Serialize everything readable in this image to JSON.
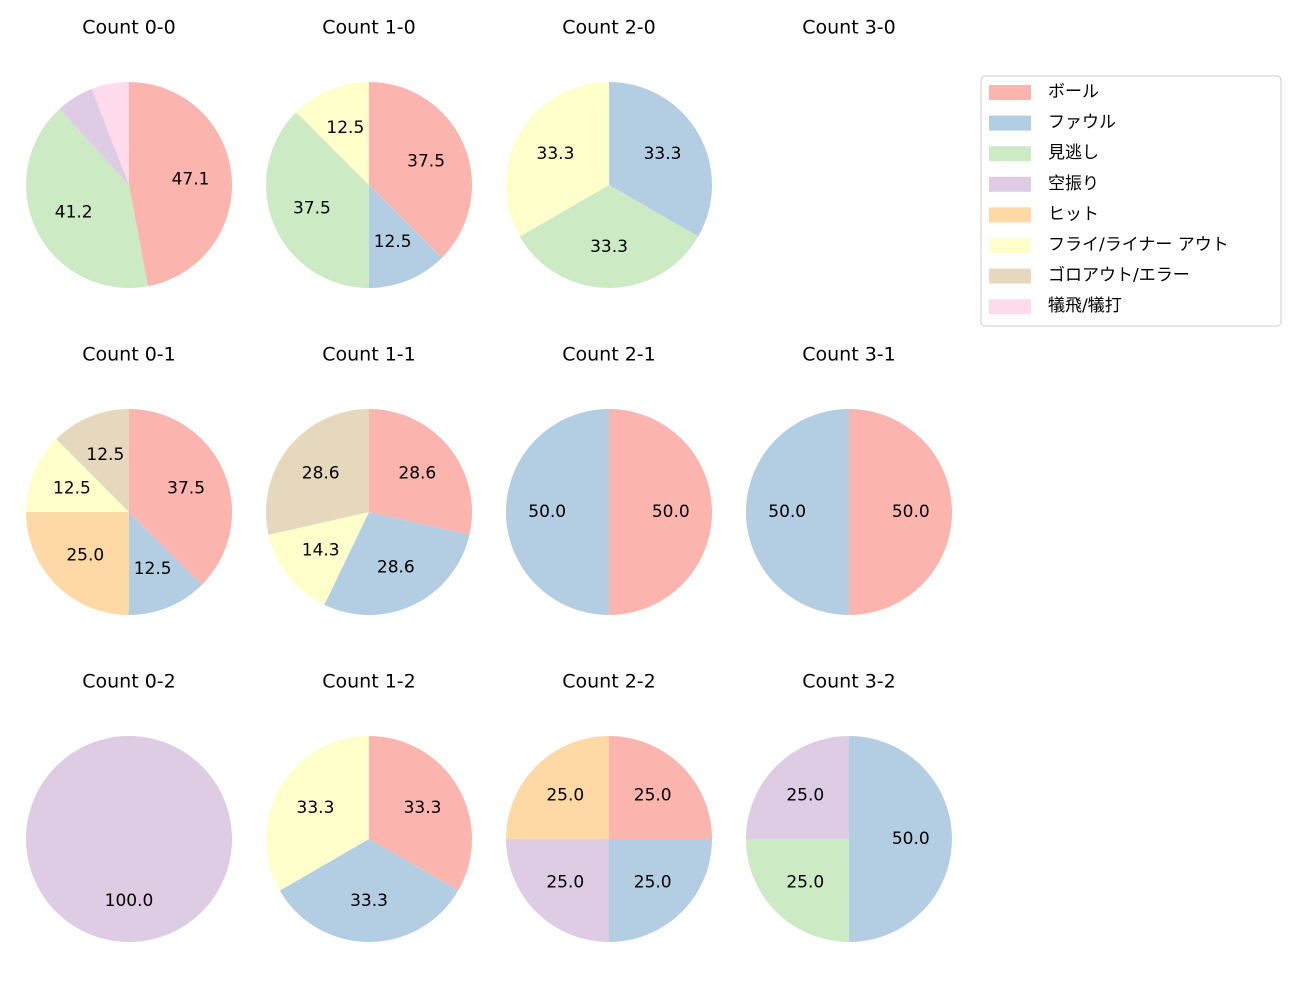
{
  "legend": {
    "categories": [
      "ボール",
      "ファウル",
      "見逃し",
      "空振り",
      "ヒット",
      "フライ/ライナー アウト",
      "ゴロアウト/エラー",
      "犠飛/犠打"
    ],
    "colors": [
      "#fbb4ae",
      "#b3cde3",
      "#ccebc5",
      "#decbe4",
      "#fed9a6",
      "#ffffcc",
      "#e5d8bd",
      "#fddaec"
    ]
  },
  "chart_data": [
    {
      "type": "pie",
      "title": "Count 0-0",
      "values": [
        47.1,
        null,
        41.2,
        5.9,
        null,
        null,
        null,
        5.9
      ],
      "value_labels": [
        "47.1",
        null,
        "41.2",
        null,
        null,
        null,
        null,
        null
      ]
    },
    {
      "type": "pie",
      "title": "Count 1-0",
      "values": [
        37.5,
        12.5,
        37.5,
        null,
        null,
        12.5,
        null,
        null
      ],
      "value_labels": [
        "37.5",
        "12.5",
        "37.5",
        null,
        null,
        "12.5",
        null,
        null
      ]
    },
    {
      "type": "pie",
      "title": "Count 2-0",
      "values": [
        null,
        33.3,
        33.3,
        null,
        null,
        33.3,
        null,
        null
      ],
      "value_labels": [
        null,
        "33.3",
        "33.3",
        null,
        null,
        "33.3",
        null,
        null
      ]
    },
    {
      "type": "pie",
      "title": "Count 3-0",
      "values": [],
      "value_labels": []
    },
    {
      "type": "pie",
      "title": "Count 0-1",
      "values": [
        37.5,
        12.5,
        null,
        null,
        25.0,
        12.5,
        12.5,
        null
      ],
      "value_labels": [
        "37.5",
        "12.5",
        null,
        null,
        "25.0",
        "12.5",
        "12.5",
        null
      ]
    },
    {
      "type": "pie",
      "title": "Count 1-1",
      "values": [
        28.6,
        28.6,
        null,
        null,
        null,
        14.3,
        28.6,
        null
      ],
      "value_labels": [
        "28.6",
        "28.6",
        null,
        null,
        null,
        "14.3",
        "28.6",
        null
      ]
    },
    {
      "type": "pie",
      "title": "Count 2-1",
      "values": [
        50,
        50,
        null,
        null,
        null,
        null,
        null,
        null
      ],
      "value_labels": [
        "50.0",
        "50.0",
        null,
        null,
        null,
        null,
        null,
        null
      ]
    },
    {
      "type": "pie",
      "title": "Count 3-1",
      "values": [
        50,
        50,
        null,
        null,
        null,
        null,
        null,
        null
      ],
      "value_labels": [
        "50.0",
        "50.0",
        null,
        null,
        null,
        null,
        null,
        null
      ]
    },
    {
      "type": "pie",
      "title": "Count 0-2",
      "values": [
        null,
        null,
        null,
        100,
        null,
        null,
        null,
        null
      ],
      "value_labels": [
        null,
        null,
        null,
        "100.0",
        null,
        null,
        null,
        null
      ]
    },
    {
      "type": "pie",
      "title": "Count 1-2",
      "values": [
        33.3,
        33.3,
        null,
        null,
        null,
        33.3,
        null,
        null
      ],
      "value_labels": [
        "33.3",
        "33.3",
        null,
        null,
        null,
        "33.3",
        null,
        null
      ]
    },
    {
      "type": "pie",
      "title": "Count 2-2",
      "values": [
        25,
        25,
        null,
        25,
        25,
        null,
        null,
        null
      ],
      "value_labels": [
        "25.0",
        "25.0",
        null,
        "25.0",
        "25.0",
        null,
        null,
        null
      ]
    },
    {
      "type": "pie",
      "title": "Count 3-2",
      "values": [
        null,
        50,
        25,
        25,
        null,
        null,
        null,
        null
      ],
      "value_labels": [
        null,
        "50.0",
        "25.0",
        "25.0",
        null,
        null,
        null,
        null
      ]
    }
  ]
}
